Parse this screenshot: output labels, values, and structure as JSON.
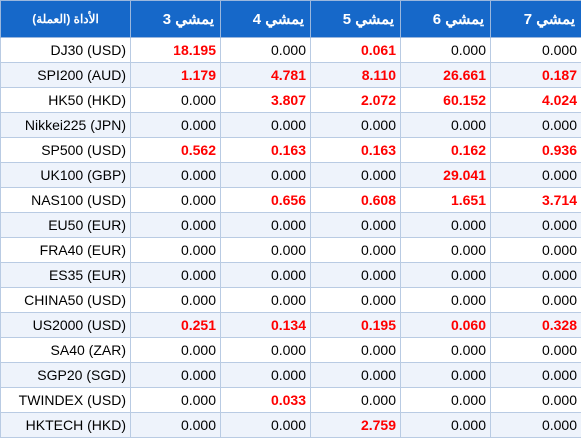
{
  "colors": {
    "header_bg": "#1668c9",
    "header_text": "#ffffff",
    "positive_value": "#ff0000",
    "zero_value": "#000000",
    "alt_row_bg": "#eef3fb"
  },
  "header": {
    "instrument": "(العملة) الأداة",
    "days": [
      "يمشي 3",
      "يمشي 4",
      "يمشي 5",
      "يمشي 6",
      "يمشي 7"
    ]
  },
  "rows": [
    {
      "instrument": "DJ30 (USD)",
      "values": [
        "18.195",
        "0.000",
        "0.061",
        "0.000",
        "0.000"
      ]
    },
    {
      "instrument": "SPI200 (AUD)",
      "values": [
        "1.179",
        "4.781",
        "8.110",
        "26.661",
        "0.187"
      ]
    },
    {
      "instrument": "HK50 (HKD)",
      "values": [
        "0.000",
        "3.807",
        "2.072",
        "60.152",
        "4.024"
      ]
    },
    {
      "instrument": "Nikkei225 (JPN)",
      "values": [
        "0.000",
        "0.000",
        "0.000",
        "0.000",
        "0.000"
      ]
    },
    {
      "instrument": "SP500 (USD)",
      "values": [
        "0.562",
        "0.163",
        "0.163",
        "0.162",
        "0.936"
      ]
    },
    {
      "instrument": "UK100 (GBP)",
      "values": [
        "0.000",
        "0.000",
        "0.000",
        "29.041",
        "0.000"
      ]
    },
    {
      "instrument": "NAS100 (USD)",
      "values": [
        "0.000",
        "0.656",
        "0.608",
        "1.651",
        "3.714"
      ]
    },
    {
      "instrument": "EU50 (EUR)",
      "values": [
        "0.000",
        "0.000",
        "0.000",
        "0.000",
        "0.000"
      ]
    },
    {
      "instrument": "FRA40 (EUR)",
      "values": [
        "0.000",
        "0.000",
        "0.000",
        "0.000",
        "0.000"
      ]
    },
    {
      "instrument": "ES35 (EUR)",
      "values": [
        "0.000",
        "0.000",
        "0.000",
        "0.000",
        "0.000"
      ]
    },
    {
      "instrument": "CHINA50 (USD)",
      "values": [
        "0.000",
        "0.000",
        "0.000",
        "0.000",
        "0.000"
      ]
    },
    {
      "instrument": "US2000 (USD)",
      "values": [
        "0.251",
        "0.134",
        "0.195",
        "0.060",
        "0.328"
      ]
    },
    {
      "instrument": "SA40 (ZAR)",
      "values": [
        "0.000",
        "0.000",
        "0.000",
        "0.000",
        "0.000"
      ]
    },
    {
      "instrument": "SGP20 (SGD)",
      "values": [
        "0.000",
        "0.000",
        "0.000",
        "0.000",
        "0.000"
      ]
    },
    {
      "instrument": "TWINDEX (USD)",
      "values": [
        "0.000",
        "0.033",
        "0.000",
        "0.000",
        "0.000"
      ]
    },
    {
      "instrument": "HKTECH (HKD)",
      "values": [
        "0.000",
        "0.000",
        "2.759",
        "0.000",
        "0.000"
      ]
    }
  ]
}
